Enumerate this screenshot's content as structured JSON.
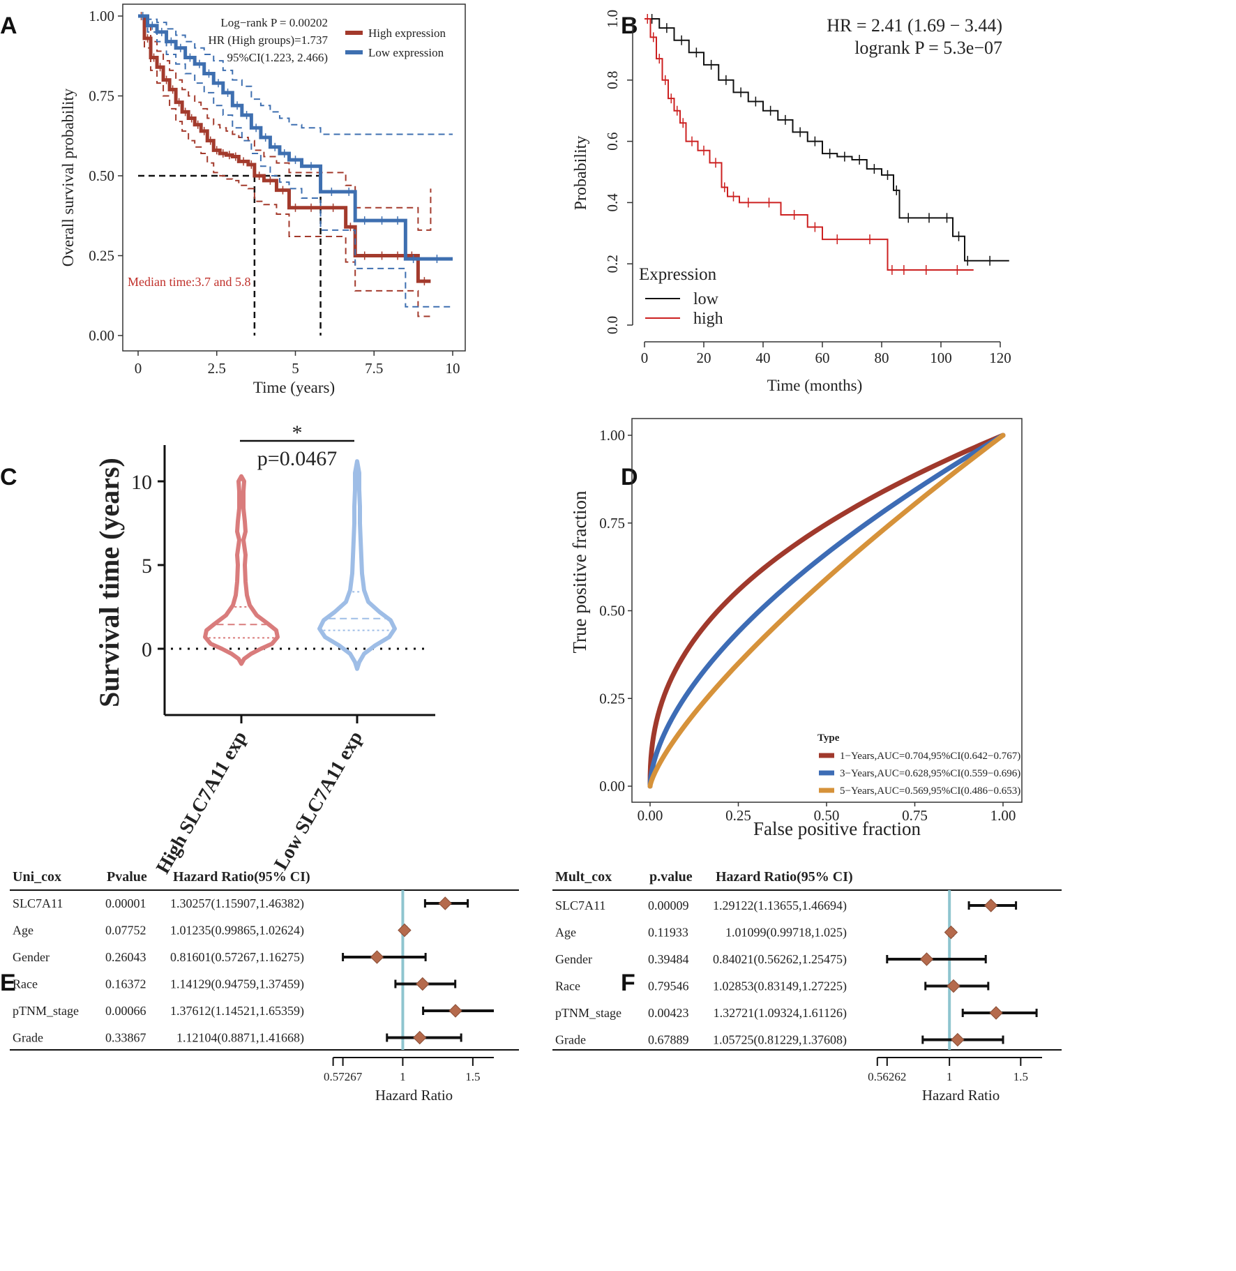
{
  "panels": {
    "A": "A",
    "B": "B",
    "C": "C",
    "D": "D",
    "E": "E",
    "F": "F"
  },
  "chart_data": [
    {
      "panel": "A",
      "type": "line",
      "subtype": "kaplan-meier",
      "xlabel": "Time (years)",
      "ylabel": "Overall survival probability",
      "xlim": [
        0,
        10
      ],
      "ylim": [
        0,
        1
      ],
      "xticks": [
        "0",
        "2.5",
        "5",
        "7.5",
        "10"
      ],
      "xtick_values": [
        0,
        2.5,
        5,
        7.5,
        10
      ],
      "yticks": [
        "0.00",
        "0.25",
        "0.50",
        "0.75",
        "1.00"
      ],
      "ytick_values": [
        0,
        0.25,
        0.5,
        0.75,
        1
      ],
      "stats": [
        "Log−rank P = 0.00202",
        "HR (High groups)=1.737",
        "95%CI(1.223, 2.466)"
      ],
      "legend": [
        "High expression",
        "Low expression"
      ],
      "median_note": "Median time:3.7 and 5.8",
      "medians": [
        3.7,
        5.8
      ],
      "colors": {
        "high": "#a33a2c",
        "low": "#3e6fb0"
      },
      "series": [
        {
          "name": "High expression",
          "x": [
            0,
            0.2,
            0.4,
            0.6,
            0.8,
            1.0,
            1.2,
            1.4,
            1.6,
            1.8,
            2.0,
            2.2,
            2.4,
            2.6,
            2.8,
            3.0,
            3.2,
            3.5,
            3.7,
            4.0,
            4.4,
            4.8,
            5.2,
            5.8,
            6.6,
            6.9,
            7.5,
            8.0,
            8.5,
            8.9,
            9.3
          ],
          "y": [
            1.0,
            0.93,
            0.87,
            0.84,
            0.8,
            0.77,
            0.73,
            0.7,
            0.68,
            0.66,
            0.64,
            0.61,
            0.58,
            0.57,
            0.565,
            0.56,
            0.545,
            0.535,
            0.5,
            0.485,
            0.455,
            0.4,
            0.4,
            0.4,
            0.34,
            0.25,
            0.25,
            0.25,
            0.25,
            0.17,
            0.17
          ],
          "upper": [
            1.0,
            0.97,
            0.92,
            0.89,
            0.86,
            0.83,
            0.8,
            0.77,
            0.75,
            0.73,
            0.71,
            0.68,
            0.66,
            0.65,
            0.64,
            0.63,
            0.62,
            0.61,
            0.58,
            0.56,
            0.54,
            0.51,
            0.51,
            0.51,
            0.47,
            0.4,
            0.4,
            0.4,
            0.4,
            0.33,
            0.46
          ],
          "lower": [
            1.0,
            0.9,
            0.83,
            0.79,
            0.75,
            0.71,
            0.67,
            0.64,
            0.61,
            0.59,
            0.57,
            0.54,
            0.51,
            0.5,
            0.49,
            0.485,
            0.47,
            0.46,
            0.42,
            0.41,
            0.38,
            0.31,
            0.31,
            0.31,
            0.23,
            0.14,
            0.14,
            0.14,
            0.14,
            0.06,
            0.06
          ]
        },
        {
          "name": "Low expression",
          "x": [
            0,
            0.3,
            0.6,
            0.9,
            1.2,
            1.5,
            1.8,
            2.1,
            2.4,
            2.7,
            3.0,
            3.3,
            3.6,
            3.9,
            4.2,
            4.5,
            4.8,
            5.2,
            5.8,
            6.5,
            6.9,
            7.5,
            8.0,
            8.5,
            9.0,
            10.0
          ],
          "y": [
            1.0,
            0.97,
            0.95,
            0.92,
            0.9,
            0.87,
            0.85,
            0.82,
            0.79,
            0.76,
            0.72,
            0.69,
            0.65,
            0.62,
            0.59,
            0.57,
            0.55,
            0.53,
            0.45,
            0.45,
            0.36,
            0.36,
            0.36,
            0.24,
            0.24,
            0.24
          ],
          "upper": [
            1.0,
            0.99,
            0.98,
            0.96,
            0.94,
            0.92,
            0.9,
            0.88,
            0.86,
            0.83,
            0.8,
            0.78,
            0.74,
            0.72,
            0.7,
            0.68,
            0.66,
            0.65,
            0.63,
            0.63,
            0.63,
            0.63,
            0.63,
            0.63,
            0.63,
            0.63
          ],
          "lower": [
            1.0,
            0.95,
            0.92,
            0.88,
            0.85,
            0.82,
            0.79,
            0.76,
            0.72,
            0.69,
            0.65,
            0.61,
            0.57,
            0.53,
            0.5,
            0.48,
            0.46,
            0.43,
            0.33,
            0.33,
            0.21,
            0.21,
            0.21,
            0.09,
            0.09,
            0.09
          ]
        }
      ]
    },
    {
      "panel": "B",
      "type": "line",
      "subtype": "kaplan-meier",
      "xlabel": "Time (months)",
      "ylabel": "Probability",
      "xlim": [
        0,
        120
      ],
      "ylim": [
        0,
        1
      ],
      "xticks": [
        "0",
        "20",
        "40",
        "60",
        "80",
        "100",
        "120"
      ],
      "xtick_values": [
        0,
        20,
        40,
        60,
        80,
        100,
        120
      ],
      "yticks": [
        "0.0",
        "0.2",
        "0.4",
        "0.6",
        "0.8",
        "1.0"
      ],
      "ytick_values": [
        0,
        0.2,
        0.4,
        0.6,
        0.8,
        1.0
      ],
      "stats": [
        "HR = 2.41 (1.69 − 3.44)",
        "logrank P = 5.3e−07"
      ],
      "legend_title": "Expression",
      "legend": [
        "low",
        "high"
      ],
      "colors": {
        "low": "#111111",
        "high": "#cc2020"
      },
      "series": [
        {
          "name": "low",
          "x": [
            0,
            5,
            10,
            15,
            20,
            25,
            30,
            35,
            40,
            45,
            50,
            55,
            60,
            65,
            70,
            75,
            80,
            84,
            86,
            92,
            100,
            104,
            108,
            110,
            123
          ],
          "y": [
            1.0,
            0.97,
            0.93,
            0.89,
            0.85,
            0.8,
            0.76,
            0.73,
            0.7,
            0.67,
            0.63,
            0.6,
            0.56,
            0.55,
            0.54,
            0.51,
            0.49,
            0.44,
            0.35,
            0.35,
            0.35,
            0.29,
            0.21,
            0.21,
            0.21
          ]
        },
        {
          "name": "high",
          "x": [
            0,
            2,
            4,
            6,
            8,
            10,
            12,
            14,
            18,
            22,
            26,
            28,
            32,
            38,
            46,
            55,
            60,
            70,
            82,
            85,
            90,
            100,
            111
          ],
          "y": [
            1.0,
            0.94,
            0.87,
            0.8,
            0.74,
            0.7,
            0.66,
            0.6,
            0.57,
            0.53,
            0.45,
            0.42,
            0.4,
            0.4,
            0.36,
            0.32,
            0.28,
            0.28,
            0.18,
            0.18,
            0.18,
            0.18,
            0.18
          ]
        }
      ]
    },
    {
      "panel": "C",
      "type": "violin",
      "ylabel": "Survival time (years)",
      "categories": [
        "High SLC7A11 exp",
        "Low SLC7A11 exp"
      ],
      "yticks": [
        "0",
        "5",
        "10"
      ],
      "ytick_values": [
        0,
        5,
        10
      ],
      "ylim": [
        -3.5,
        12
      ],
      "significance": "*",
      "pvalue": "p=0.0467",
      "colors": [
        "#d97c7c",
        "#9ebde6"
      ],
      "quartiles": [
        {
          "q1": 0.65,
          "median": 1.45,
          "q3": 2.5,
          "min": -0.9,
          "max": 10.3
        },
        {
          "q1": 1.1,
          "median": 1.8,
          "q3": 3.4,
          "min": -1.2,
          "max": 11.2
        }
      ]
    },
    {
      "panel": "D",
      "type": "line",
      "subtype": "roc",
      "xlabel": "False positive fraction",
      "ylabel": "True positive fraction",
      "xlim": [
        0,
        1
      ],
      "ylim": [
        0,
        1
      ],
      "xticks": [
        "0.00",
        "0.25",
        "0.50",
        "0.75",
        "1.00"
      ],
      "xtick_values": [
        0,
        0.25,
        0.5,
        0.75,
        1
      ],
      "yticks": [
        "0.00",
        "0.25",
        "0.50",
        "0.75",
        "1.00"
      ],
      "ytick_values": [
        0,
        0.25,
        0.5,
        0.75,
        1
      ],
      "legend_title": "Type",
      "series": [
        {
          "name": "1−Years,AUC=0.704,95%CI(0.642−0.767)",
          "auc": 0.704,
          "color": "#a0392c"
        },
        {
          "name": "3−Years,AUC=0.628,95%CI(0.559−0.696)",
          "auc": 0.628,
          "color": "#3d6cb5"
        },
        {
          "name": "5−Years,AUC=0.569,95%CI(0.486−0.653)",
          "auc": 0.569,
          "color": "#d6923a"
        }
      ]
    },
    {
      "panel": "E",
      "type": "table",
      "subtype": "forest",
      "headers": [
        "Uni_cox",
        "Pvalue",
        "Hazard Ratio(95% CI)"
      ],
      "rows": [
        {
          "name": "SLC7A11",
          "p": "0.00001",
          "hr_text": "1.30257(1.15907,1.46382)",
          "hr": 1.30257,
          "lo": 1.15907,
          "hi": 1.46382
        },
        {
          "name": "Age",
          "p": "0.07752",
          "hr_text": "1.01235(0.99865,1.02624)",
          "hr": 1.01235,
          "lo": 0.99865,
          "hi": 1.02624
        },
        {
          "name": "Gender",
          "p": "0.26043",
          "hr_text": "0.81601(0.57267,1.16275)",
          "hr": 0.81601,
          "lo": 0.57267,
          "hi": 1.16275
        },
        {
          "name": "Race",
          "p": "0.16372",
          "hr_text": "1.14129(0.94759,1.37459)",
          "hr": 1.14129,
          "lo": 0.94759,
          "hi": 1.37459
        },
        {
          "name": "pTNM_stage",
          "p": "0.00066",
          "hr_text": "1.37612(1.14521,1.65359)",
          "hr": 1.37612,
          "lo": 1.14521,
          "hi": 1.65359
        },
        {
          "name": "Grade",
          "p": "0.33867",
          "hr_text": "1.12104(0.8871,1.41668)",
          "hr": 1.12104,
          "lo": 0.8871,
          "hi": 1.41668
        }
      ],
      "xlabel": "Hazard Ratio",
      "xticks": [
        "0.57267",
        "1",
        "1.5"
      ],
      "xtick_values": [
        0.57267,
        1,
        1.5
      ],
      "xlim": [
        0.5,
        1.65
      ]
    },
    {
      "panel": "F",
      "type": "table",
      "subtype": "forest",
      "headers": [
        "Mult_cox",
        "p.value",
        "Hazard Ratio(95% CI)"
      ],
      "rows": [
        {
          "name": "SLC7A11",
          "p": "0.00009",
          "hr_text": "1.29122(1.13655,1.46694)",
          "hr": 1.29122,
          "lo": 1.13655,
          "hi": 1.46694
        },
        {
          "name": "Age",
          "p": "0.11933",
          "hr_text": "1.01099(0.99718,1.025)",
          "hr": 1.01099,
          "lo": 0.99718,
          "hi": 1.025
        },
        {
          "name": "Gender",
          "p": "0.39484",
          "hr_text": "0.84021(0.56262,1.25475)",
          "hr": 0.84021,
          "lo": 0.56262,
          "hi": 1.25475
        },
        {
          "name": "Race",
          "p": "0.79546",
          "hr_text": "1.02853(0.83149,1.27225)",
          "hr": 1.02853,
          "lo": 0.83149,
          "hi": 1.27225
        },
        {
          "name": "pTNM_stage",
          "p": "0.00423",
          "hr_text": "1.32721(1.09324,1.61126)",
          "hr": 1.32721,
          "lo": 1.09324,
          "hi": 1.61126
        },
        {
          "name": "Grade",
          "p": "0.67889",
          "hr_text": "1.05725(0.81229,1.37608)",
          "hr": 1.05725,
          "lo": 0.81229,
          "hi": 1.37608
        }
      ],
      "xlabel": "Hazard Ratio",
      "xticks": [
        "0.56262",
        "1",
        "1.5"
      ],
      "xtick_values": [
        0.56262,
        1,
        1.5
      ],
      "xlim": [
        0.5,
        1.65
      ]
    }
  ]
}
